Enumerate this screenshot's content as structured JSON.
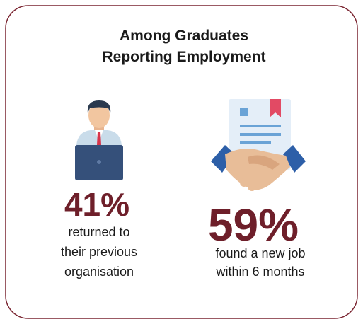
{
  "title": [
    "Among Graduates",
    "Reporting Employment"
  ],
  "stats": [
    {
      "value": "41%",
      "description": [
        "returned to",
        "their previous",
        "organisation"
      ]
    },
    {
      "value": "59%",
      "description": [
        "found a new job",
        "within 6 months"
      ]
    }
  ]
}
